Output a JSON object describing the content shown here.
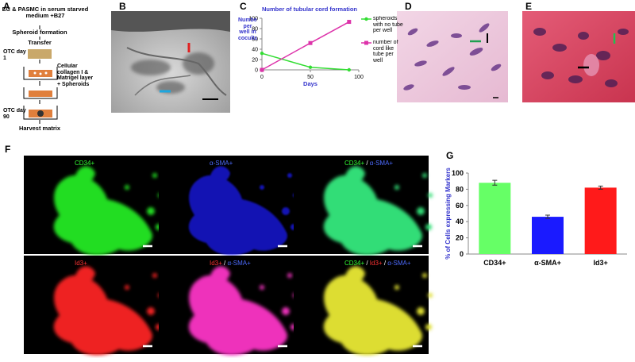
{
  "panel_letters": [
    "A",
    "B",
    "C",
    "D",
    "E",
    "F",
    "G"
  ],
  "flowchart": {
    "steps": [
      "EC & PASMC in serum starved medium +B27",
      "Spheroid formation",
      "Transfer",
      "OTC day 1",
      "Cellular collagen I & Matrigel layer + Spheroids",
      "OTC day 90",
      "Harvest matrix"
    ]
  },
  "fluorescence_labels": [
    [
      {
        "text": "CD34+",
        "color": "#33ff33"
      }
    ],
    [
      {
        "text": "α-SMA+",
        "color": "#4d6bff"
      }
    ],
    [
      {
        "text": "CD34+",
        "color": "#33ff33"
      },
      {
        "text": " / ",
        "color": "#ffffff"
      },
      {
        "text": "α-SMA+",
        "color": "#4d6bff"
      }
    ],
    [
      {
        "text": "Id3+",
        "color": "#ff3333"
      }
    ],
    [
      {
        "text": "Id3+",
        "color": "#ff3333"
      },
      {
        "text": " / ",
        "color": "#ffffff"
      },
      {
        "text": "α-SMA+",
        "color": "#4d6bff"
      }
    ],
    [
      {
        "text": "CD34+",
        "color": "#33ff33"
      },
      {
        "text": " / ",
        "color": "#ffffff"
      },
      {
        "text": "Id3+",
        "color": "#ff3333"
      },
      {
        "text": " / ",
        "color": "#ffffff"
      },
      {
        "text": "α-SMA+",
        "color": "#4d6bff"
      }
    ]
  ],
  "chart_data": [
    {
      "type": "line",
      "title": "Number of tubular cord formation",
      "x_label": "Days",
      "y_label": "Numbers per well in coculture",
      "x": [
        0,
        50,
        90
      ],
      "series": [
        {
          "name": "spheroids with no tube per well",
          "color": "#33dd33",
          "marker": "circle",
          "values": [
            32,
            5,
            0
          ]
        },
        {
          "name": "number of cord like tube per well",
          "color": "#dd33aa",
          "marker": "square",
          "values": [
            0,
            52,
            93
          ]
        }
      ],
      "xlim": [
        0,
        100
      ],
      "xticks": [
        0,
        50,
        100
      ],
      "ylim": [
        0,
        100
      ],
      "yticks": [
        0,
        20,
        40,
        60,
        80,
        100
      ]
    },
    {
      "type": "bar",
      "y_label": "% of Cells expressing Markers",
      "categories": [
        "CD34+",
        "α-SMA+",
        "Id3+"
      ],
      "values": [
        88,
        46,
        82
      ],
      "errors": [
        3,
        2,
        2
      ],
      "colors": [
        "#66ff66",
        "#1a1aff",
        "#ff1a1a"
      ],
      "ylim": [
        0,
        100
      ],
      "yticks": [
        0,
        20,
        40,
        60,
        80,
        100
      ],
      "grid": false
    }
  ]
}
